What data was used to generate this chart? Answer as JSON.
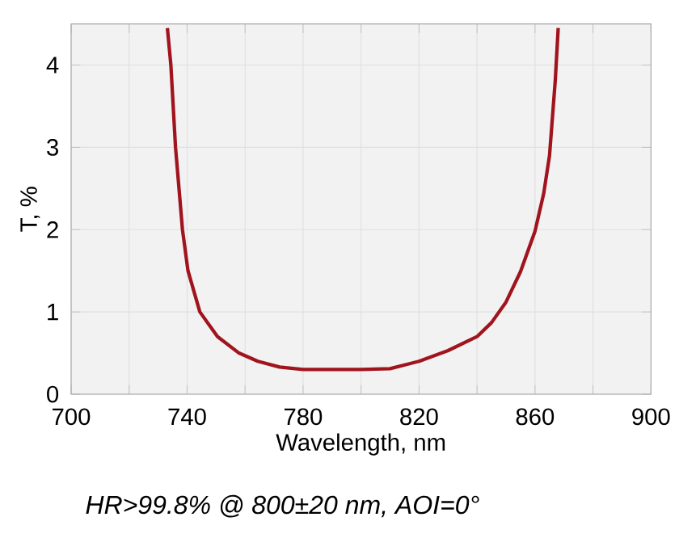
{
  "chart_data": {
    "type": "line",
    "xlabel": "Wavelength, nm",
    "ylabel": "T, %",
    "annotations": [
      "*HR>99.8% @ 800±20 nm, AOI=0°*"
    ],
    "xlim": [
      700,
      900
    ],
    "ylim": [
      0,
      4.5
    ],
    "xticks": [
      700,
      {
        "value": 720,
        "label": null
      },
      740,
      {
        "value": 760,
        "label": null
      },
      780,
      {
        "value": 800,
        "label": null
      },
      820,
      {
        "value": 840,
        "label": null
      },
      860,
      {
        "value": 880,
        "label": null
      },
      900
    ],
    "yticks": [
      0,
      1,
      2,
      3,
      4
    ],
    "grid": true,
    "series": [
      {
        "color": "#a0141e",
        "x": [
          733.2,
          734.4,
          736.0,
          738.4,
          740.3,
          744.4,
          750.5,
          757.9,
          764.4,
          771.9,
          780,
          790,
          800,
          810,
          820,
          830,
          840,
          845,
          850,
          855,
          860,
          863,
          865,
          867,
          868
        ],
        "values": [
          4.45,
          4.0,
          3.0,
          2.0,
          1.5,
          1.0,
          0.7,
          0.5,
          0.4,
          0.33,
          0.3,
          0.3,
          0.3,
          0.31,
          0.4,
          0.53,
          0.7,
          0.87,
          1.12,
          1.49,
          1.98,
          2.44,
          2.9,
          3.82,
          4.45
        ]
      }
    ]
  }
}
